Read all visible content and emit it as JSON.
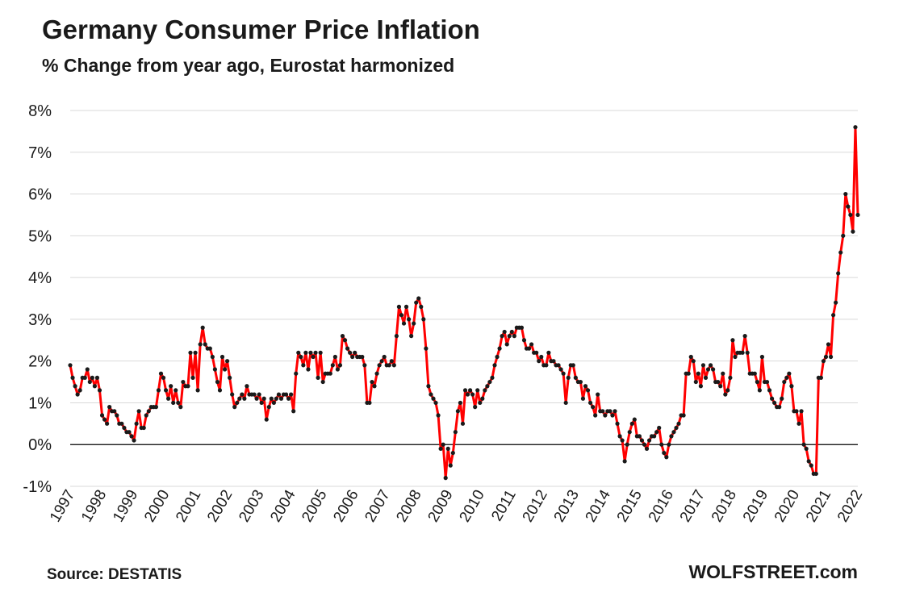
{
  "title": "Germany Consumer Price Inflation",
  "subtitle": "% Change from year ago, Eurostat harmonized",
  "source": "Source: DESTATIS",
  "brand": "WOLFSTREET.com",
  "colors": {
    "line": "#ff0000",
    "marker": "#1a1a1a",
    "grid": "#d9d9d9",
    "zero_line": "#000000"
  },
  "chart_data": {
    "type": "line",
    "title": "Germany Consumer Price Inflation",
    "subtitle": "% Change from year ago, Eurostat harmonized",
    "xlabel": "",
    "ylabel": "",
    "ylim": [
      -1,
      8
    ],
    "yticks": [
      -1,
      0,
      1,
      2,
      3,
      4,
      5,
      6,
      7,
      8
    ],
    "ytick_labels": [
      "-1%",
      "0%",
      "1%",
      "2%",
      "3%",
      "4%",
      "5%",
      "6%",
      "7%",
      "8%"
    ],
    "xticks": [
      "1997",
      "1998",
      "1999",
      "2000",
      "2001",
      "2002",
      "2003",
      "2004",
      "2005",
      "2006",
      "2007",
      "2008",
      "2009",
      "2010",
      "2011",
      "2012",
      "2013",
      "2014",
      "2015",
      "2016",
      "2017",
      "2018",
      "2019",
      "2020",
      "2021",
      "2022"
    ],
    "grid": true,
    "legend": "none",
    "x_start": "1997-01",
    "frequency": "monthly",
    "series": [
      {
        "values": [
          1.9,
          1.6,
          1.4,
          1.2,
          1.3,
          1.6,
          1.6,
          1.8,
          1.5,
          1.6,
          1.4,
          1.6,
          1.3,
          0.7,
          0.6,
          0.5,
          0.9,
          0.8,
          0.8,
          0.7,
          0.5,
          0.5,
          0.4,
          0.3,
          0.3,
          0.2,
          0.1,
          0.5,
          0.8,
          0.4,
          0.4,
          0.7,
          0.8,
          0.9,
          0.9,
          0.9,
          1.3,
          1.7,
          1.6,
          1.3,
          1.1,
          1.4,
          1.0,
          1.3,
          1.0,
          0.9,
          1.5,
          1.4,
          1.4,
          2.2,
          1.6,
          2.2,
          1.3,
          2.4,
          2.8,
          2.4,
          2.3,
          2.3,
          2.1,
          1.8,
          1.5,
          1.3,
          2.1,
          1.8,
          2.0,
          1.6,
          1.2,
          0.9,
          1.0,
          1.1,
          1.2,
          1.1,
          1.4,
          1.2,
          1.2,
          1.2,
          1.1,
          1.2,
          1.0,
          1.1,
          0.6,
          0.9,
          1.1,
          1.0,
          1.1,
          1.2,
          1.1,
          1.2,
          1.2,
          1.1,
          1.2,
          0.8,
          1.7,
          2.2,
          2.1,
          1.9,
          2.2,
          1.8,
          2.2,
          2.1,
          2.2,
          1.6,
          2.2,
          1.5,
          1.7,
          1.7,
          1.7,
          1.9,
          2.1,
          1.8,
          1.9,
          2.6,
          2.5,
          2.3,
          2.2,
          2.1,
          2.2,
          2.1,
          2.1,
          2.1,
          1.9,
          1.0,
          1.0,
          1.5,
          1.4,
          1.7,
          1.9,
          2.0,
          2.1,
          1.9,
          1.9,
          2.0,
          1.9,
          2.6,
          3.3,
          3.1,
          2.9,
          3.3,
          3.0,
          2.6,
          2.9,
          3.4,
          3.5,
          3.3,
          3.0,
          2.3,
          1.4,
          1.2,
          1.1,
          1.0,
          0.7,
          -0.1,
          0.0,
          -0.8,
          -0.1,
          -0.5,
          -0.2,
          0.3,
          0.8,
          1.0,
          0.5,
          1.3,
          1.2,
          1.3,
          1.2,
          0.9,
          1.3,
          1.0,
          1.1,
          1.3,
          1.4,
          1.5,
          1.6,
          1.9,
          2.1,
          2.3,
          2.6,
          2.7,
          2.4,
          2.6,
          2.7,
          2.6,
          2.8,
          2.8,
          2.8,
          2.5,
          2.3,
          2.3,
          2.4,
          2.2,
          2.2,
          2.0,
          2.1,
          1.9,
          1.9,
          2.2,
          2.0,
          2.0,
          1.9,
          1.9,
          1.8,
          1.7,
          1.0,
          1.6,
          1.9,
          1.9,
          1.6,
          1.5,
          1.5,
          1.1,
          1.4,
          1.3,
          1.0,
          0.9,
          0.7,
          1.2,
          0.8,
          0.8,
          0.7,
          0.8,
          0.8,
          0.7,
          0.8,
          0.5,
          0.2,
          0.1,
          -0.4,
          0.0,
          0.3,
          0.5,
          0.6,
          0.2,
          0.2,
          0.1,
          0.0,
          -0.1,
          0.1,
          0.2,
          0.2,
          0.3,
          0.4,
          0.0,
          -0.2,
          -0.3,
          0.0,
          0.2,
          0.3,
          0.4,
          0.5,
          0.7,
          0.7,
          1.7,
          1.7,
          2.1,
          2.0,
          1.5,
          1.7,
          1.4,
          1.9,
          1.6,
          1.8,
          1.9,
          1.8,
          1.5,
          1.5,
          1.4,
          1.7,
          1.2,
          1.3,
          1.6,
          2.5,
          2.1,
          2.2,
          2.2,
          2.2,
          2.6,
          2.2,
          1.7,
          1.7,
          1.7,
          1.5,
          1.3,
          2.1,
          1.5,
          1.5,
          1.3,
          1.1,
          1.0,
          0.9,
          0.9,
          1.1,
          1.5,
          1.6,
          1.7,
          1.4,
          0.8,
          0.8,
          0.5,
          0.8,
          0.0,
          -0.1,
          -0.4,
          -0.5,
          -0.7,
          -0.7,
          1.6,
          1.6,
          2.0,
          2.1,
          2.4,
          2.1,
          3.1,
          3.4,
          4.1,
          4.6,
          5.0,
          6.0,
          5.7,
          5.5,
          5.1,
          7.6,
          5.5
        ]
      }
    ]
  }
}
